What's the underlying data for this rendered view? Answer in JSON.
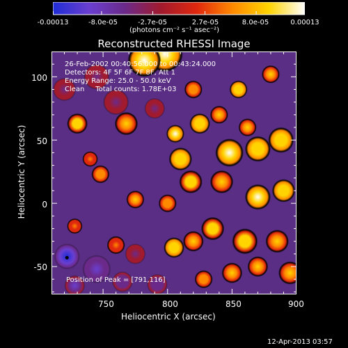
{
  "colorbar": {
    "tick_labels": [
      "-0.00013",
      "-8.0e-05",
      "-2.7e-05",
      "2.7e-05",
      "8.0e-05",
      "0.00013"
    ],
    "tick_values": [
      -0.00013,
      -8e-05,
      -2.7e-05,
      2.7e-05,
      8e-05,
      0.00013
    ],
    "range": [
      -0.00013,
      0.00013
    ],
    "units": "(photons cm⁻² s⁻¹ asec⁻²)",
    "colors": [
      "#1f2dd6",
      "#6a3fd0",
      "#6b2a8a",
      "#a11a2e",
      "#e0280e",
      "#ff8a00",
      "#ffd400",
      "#ffffff"
    ]
  },
  "chart_data": {
    "type": "heatmap",
    "title": "Reconstructed RHESSI Image",
    "xlabel": "Heliocentric X (arcsec)",
    "ylabel": "Heliocentric Y (arcsec)",
    "xlim": [
      710,
      900
    ],
    "ylim": [
      -72,
      120
    ],
    "x_ticks": [
      750,
      800,
      850,
      900
    ],
    "y_ticks": [
      -50,
      0,
      50,
      100
    ],
    "x_tick_labels": [
      "750",
      "800",
      "850",
      "900"
    ],
    "y_tick_labels": [
      "-50",
      "0",
      "50",
      "100"
    ],
    "annotations": [
      "26-Feb-2002 00:40:56.000 to 00:43:24.000",
      "Detectors: 4F 5F 6F 7F 8F, Att 1",
      "Energy Range: 25.0 - 50.0 keV",
      "Clean     Total counts: 1.78E+03"
    ],
    "peak_text": "Position of Peak = [791,116]",
    "peak_position": [
      791,
      116
    ],
    "marker_position": [
      722,
      -43
    ],
    "bright_sources": [
      {
        "x": 798,
        "y": 118,
        "intensity": 1.0,
        "r": 14
      },
      {
        "x": 782,
        "y": 113,
        "intensity": 0.95,
        "r": 13
      },
      {
        "x": 730,
        "y": 63,
        "intensity": 0.8,
        "r": 8
      },
      {
        "x": 768,
        "y": 63,
        "intensity": 0.7,
        "r": 9
      },
      {
        "x": 806,
        "y": 55,
        "intensity": 0.95,
        "r": 7
      },
      {
        "x": 810,
        "y": 35,
        "intensity": 0.85,
        "r": 9
      },
      {
        "x": 825,
        "y": 63,
        "intensity": 0.85,
        "r": 8
      },
      {
        "x": 848,
        "y": 40,
        "intensity": 1.0,
        "r": 11
      },
      {
        "x": 870,
        "y": 43,
        "intensity": 0.85,
        "r": 10
      },
      {
        "x": 888,
        "y": 50,
        "intensity": 0.85,
        "r": 10
      },
      {
        "x": 862,
        "y": 60,
        "intensity": 0.75,
        "r": 7
      },
      {
        "x": 840,
        "y": 70,
        "intensity": 0.7,
        "r": 7
      },
      {
        "x": 855,
        "y": 90,
        "intensity": 0.85,
        "r": 7
      },
      {
        "x": 880,
        "y": 102,
        "intensity": 0.75,
        "r": 7
      },
      {
        "x": 820,
        "y": 90,
        "intensity": 0.55,
        "r": 7
      },
      {
        "x": 818,
        "y": 17,
        "intensity": 0.8,
        "r": 9
      },
      {
        "x": 842,
        "y": 17,
        "intensity": 0.75,
        "r": 9
      },
      {
        "x": 870,
        "y": 5,
        "intensity": 0.95,
        "r": 10
      },
      {
        "x": 890,
        "y": 10,
        "intensity": 0.85,
        "r": 9
      },
      {
        "x": 748,
        "y": 23,
        "intensity": 0.45,
        "r": 7
      },
      {
        "x": 775,
        "y": 3,
        "intensity": 0.75,
        "r": 7
      },
      {
        "x": 800,
        "y": 0,
        "intensity": 0.55,
        "r": 7
      },
      {
        "x": 835,
        "y": -20,
        "intensity": 0.8,
        "r": 9
      },
      {
        "x": 820,
        "y": -30,
        "intensity": 0.6,
        "r": 8
      },
      {
        "x": 805,
        "y": -35,
        "intensity": 0.85,
        "r": 8
      },
      {
        "x": 860,
        "y": -30,
        "intensity": 0.8,
        "r": 10
      },
      {
        "x": 885,
        "y": -30,
        "intensity": 0.65,
        "r": 9
      },
      {
        "x": 895,
        "y": -55,
        "intensity": 0.75,
        "r": 9
      },
      {
        "x": 870,
        "y": -50,
        "intensity": 0.7,
        "r": 8
      },
      {
        "x": 850,
        "y": -55,
        "intensity": 0.75,
        "r": 8
      },
      {
        "x": 828,
        "y": -60,
        "intensity": 0.55,
        "r": 7
      },
      {
        "x": 760,
        "y": -33,
        "intensity": 0.35,
        "r": 7
      },
      {
        "x": 740,
        "y": 35,
        "intensity": 0.3,
        "r": 6
      },
      {
        "x": 728,
        "y": -18,
        "intensity": 0.3,
        "r": 6
      }
    ],
    "dark_sources": [
      {
        "x": 722,
        "y": -42,
        "intensity": -1.0,
        "r": 10
      },
      {
        "x": 745,
        "y": -52,
        "intensity": -0.75,
        "r": 11
      },
      {
        "x": 728,
        "y": -65,
        "intensity": -0.7,
        "r": 8
      },
      {
        "x": 765,
        "y": -62,
        "intensity": -0.55,
        "r": 8
      },
      {
        "x": 792,
        "y": -64,
        "intensity": -0.5,
        "r": 8
      },
      {
        "x": 775,
        "y": -40,
        "intensity": -0.4,
        "r": 8
      },
      {
        "x": 760,
        "y": 80,
        "intensity": -0.35,
        "r": 10
      },
      {
        "x": 745,
        "y": 100,
        "intensity": -0.3,
        "r": 10
      },
      {
        "x": 790,
        "y": 75,
        "intensity": -0.3,
        "r": 8
      },
      {
        "x": 720,
        "y": 90,
        "intensity": -0.3,
        "r": 9
      }
    ]
  },
  "footer": {
    "timestamp": "12-Apr-2013 03:57"
  }
}
